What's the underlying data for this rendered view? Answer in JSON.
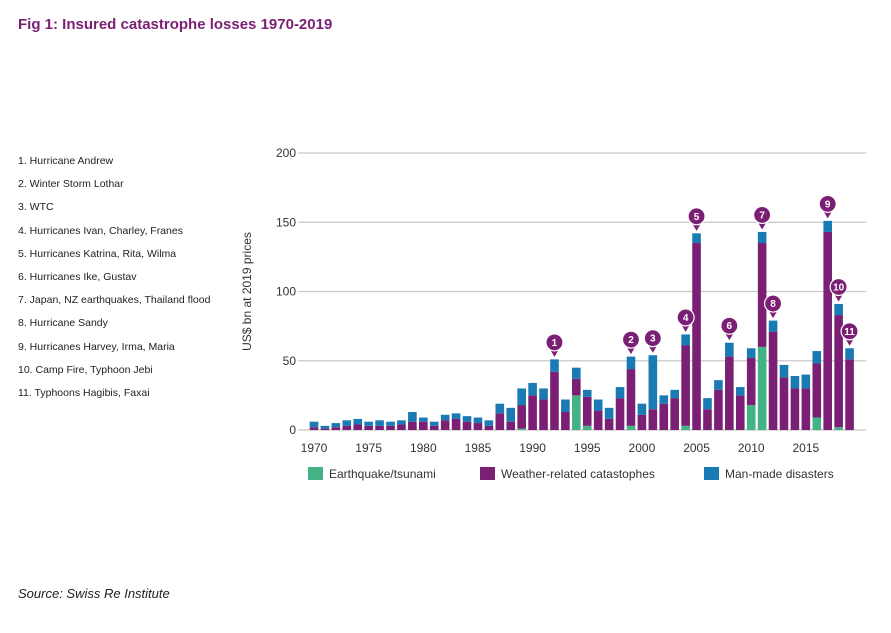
{
  "title": "Fig 1: Insured catastrophe losses 1970-2019",
  "event_list": [
    "1. Hurricane Andrew",
    "2. Winter Storm Lothar",
    "3. WTC",
    "4. Hurricanes Ivan, Charley, Franes",
    "5. Hurricanes Katrina, Rita, Wilma",
    "6. Hurricanes Ike, Gustav",
    "7. Japan, NZ earthquakes, Thailand flood",
    "8. Hurricane Sandy",
    "9. Hurricanes Harvey, Irma, Maria",
    "10. Camp Fire, Typhoon Jebi",
    "11. Typhoons Hagibis, Faxai"
  ],
  "source": "Source: Swiss Re Institute",
  "chart_data": {
    "type": "bar",
    "stacked": true,
    "ylabel": "US$ bn at 2019 prices",
    "ylim": [
      0,
      200
    ],
    "yticks": [
      0,
      50,
      100,
      150,
      200
    ],
    "xticks": [
      "1970",
      "1975",
      "1980",
      "1985",
      "1990",
      "1995",
      "2000",
      "2005",
      "2010",
      "2015"
    ],
    "grid": "horizontal",
    "legend_position": "bottom",
    "colors": {
      "Earthquake/tsunami": "#43b386",
      "Weather-related catastophes": "#7b1f75",
      "Man-made disasters": "#1a7bb4",
      "marker": "#7b1f75"
    },
    "categories": [
      1970,
      1971,
      1972,
      1973,
      1974,
      1975,
      1976,
      1977,
      1978,
      1979,
      1980,
      1981,
      1982,
      1983,
      1984,
      1985,
      1986,
      1987,
      1988,
      1989,
      1990,
      1991,
      1992,
      1993,
      1994,
      1995,
      1996,
      1997,
      1998,
      1999,
      2000,
      2001,
      2002,
      2003,
      2004,
      2005,
      2006,
      2007,
      2008,
      2009,
      2010,
      2011,
      2012,
      2013,
      2014,
      2015,
      2016,
      2017,
      2018,
      2019
    ],
    "series": [
      {
        "name": "Earthquake/tsunami",
        "values": [
          0,
          0,
          0,
          0,
          0,
          0,
          0,
          0,
          0,
          0,
          0,
          0,
          0,
          0,
          0,
          0,
          0,
          0,
          0,
          1,
          0,
          0,
          0,
          0,
          25,
          3,
          0,
          0,
          0,
          3,
          0,
          0,
          0,
          0,
          3,
          0,
          0,
          0,
          0,
          0,
          18,
          60,
          0,
          0,
          0,
          0,
          9,
          0,
          2,
          0
        ]
      },
      {
        "name": "Weather-related catastophes",
        "values": [
          2,
          1,
          2,
          3,
          4,
          3,
          3,
          3,
          4,
          6,
          6,
          3,
          7,
          8,
          6,
          5,
          3,
          12,
          6,
          17,
          25,
          22,
          42,
          13,
          12,
          21,
          14,
          8,
          23,
          41,
          11,
          15,
          19,
          23,
          58,
          135,
          15,
          29,
          53,
          25,
          34,
          75,
          71,
          38,
          30,
          30,
          39,
          143,
          81,
          51
        ]
      },
      {
        "name": "Man-made disasters",
        "values": [
          4,
          2,
          3,
          4,
          4,
          3,
          4,
          3,
          3,
          7,
          3,
          3,
          4,
          4,
          4,
          4,
          4,
          7,
          10,
          12,
          9,
          8,
          9,
          9,
          8,
          5,
          8,
          8,
          8,
          9,
          8,
          39,
          6,
          6,
          8,
          7,
          8,
          7,
          10,
          6,
          7,
          8,
          8,
          9,
          9,
          10,
          9,
          8,
          8,
          8
        ]
      }
    ],
    "annotations": [
      {
        "label": "1",
        "year": 1992
      },
      {
        "label": "2",
        "year": 1999
      },
      {
        "label": "3",
        "year": 2001
      },
      {
        "label": "4",
        "year": 2004
      },
      {
        "label": "5",
        "year": 2005
      },
      {
        "label": "6",
        "year": 2008
      },
      {
        "label": "7",
        "year": 2011
      },
      {
        "label": "8",
        "year": 2012
      },
      {
        "label": "9",
        "year": 2017
      },
      {
        "label": "10",
        "year": 2018
      },
      {
        "label": "11",
        "year": 2019
      }
    ]
  }
}
